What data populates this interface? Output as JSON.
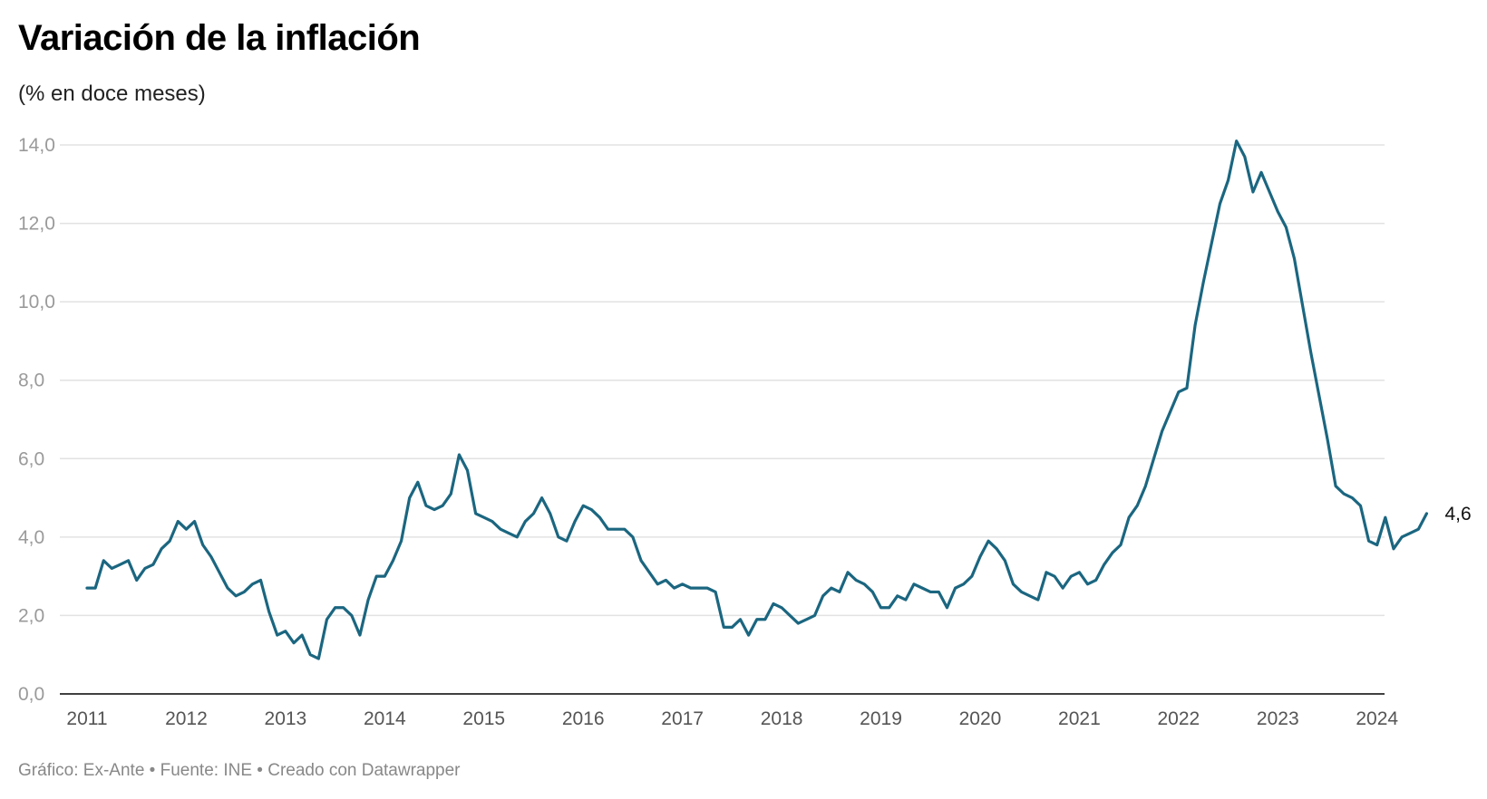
{
  "title": "Variación de la inflación",
  "subtitle": "(% en doce meses)",
  "footer": {
    "graphic": "Gráfico: Ex-Ante",
    "source": "Fuente: INE",
    "credit": "Creado con Datawrapper",
    "separator": " • "
  },
  "colors": {
    "line": "#1b6680",
    "grid": "#e2e2e2",
    "baseline": "#000000"
  },
  "chart_data": {
    "type": "line",
    "title": "Variación de la inflación",
    "subtitle": "(% en doce meses)",
    "xlabel": "",
    "ylabel": "",
    "start": "2011-01",
    "frequency": "monthly",
    "ylim": [
      0,
      14
    ],
    "y_ticks": [
      0,
      2,
      4,
      6,
      8,
      10,
      12,
      14
    ],
    "y_tick_labels": [
      "0,0",
      "2,0",
      "4,0",
      "6,0",
      "8,0",
      "10,0",
      "12,0",
      "14,0"
    ],
    "x_tick_labels": [
      "2011",
      "2012",
      "2013",
      "2014",
      "2015",
      "2016",
      "2017",
      "2018",
      "2019",
      "2020",
      "2021",
      "2022",
      "2023",
      "2024"
    ],
    "grid": true,
    "legend": "none",
    "end_label": "4,6",
    "series": [
      {
        "values": [
          2.7,
          2.7,
          3.4,
          3.2,
          3.3,
          3.4,
          2.9,
          3.2,
          3.3,
          3.7,
          3.9,
          4.4,
          4.2,
          4.4,
          3.8,
          3.5,
          3.1,
          2.7,
          2.5,
          2.6,
          2.8,
          2.9,
          2.1,
          1.5,
          1.6,
          1.3,
          1.5,
          1.0,
          0.9,
          1.9,
          2.2,
          2.2,
          2.0,
          1.5,
          2.4,
          3.0,
          3.0,
          3.4,
          3.9,
          5.0,
          5.4,
          4.8,
          4.7,
          4.8,
          5.1,
          6.1,
          5.7,
          4.6,
          4.5,
          4.4,
          4.2,
          4.1,
          4.0,
          4.4,
          4.6,
          5.0,
          4.6,
          4.0,
          3.9,
          4.4,
          4.8,
          4.7,
          4.5,
          4.2,
          4.2,
          4.2,
          4.0,
          3.4,
          3.1,
          2.8,
          2.9,
          2.7,
          2.8,
          2.7,
          2.7,
          2.7,
          2.6,
          1.7,
          1.7,
          1.9,
          1.5,
          1.9,
          1.9,
          2.3,
          2.2,
          2.0,
          1.8,
          1.9,
          2.0,
          2.5,
          2.7,
          2.6,
          3.1,
          2.9,
          2.8,
          2.6,
          2.2,
          2.2,
          2.5,
          2.4,
          2.8,
          2.7,
          2.6,
          2.6,
          2.2,
          2.7,
          2.8,
          3.0,
          3.5,
          3.9,
          3.7,
          3.4,
          2.8,
          2.6,
          2.5,
          2.4,
          3.1,
          3.0,
          2.7,
          3.0,
          3.1,
          2.8,
          2.9,
          3.3,
          3.6,
          3.8,
          4.5,
          4.8,
          5.3,
          6.0,
          6.7,
          7.2,
          7.7,
          7.8,
          9.4,
          10.5,
          11.5,
          12.5,
          13.1,
          14.1,
          13.7,
          12.8,
          13.3,
          12.8,
          12.3,
          11.9,
          11.1,
          9.9,
          8.7,
          7.6,
          6.5,
          5.3,
          5.1,
          5.0,
          4.8,
          3.9,
          3.8,
          4.5,
          3.7,
          4.0,
          4.1,
          4.2,
          4.6
        ]
      }
    ]
  }
}
